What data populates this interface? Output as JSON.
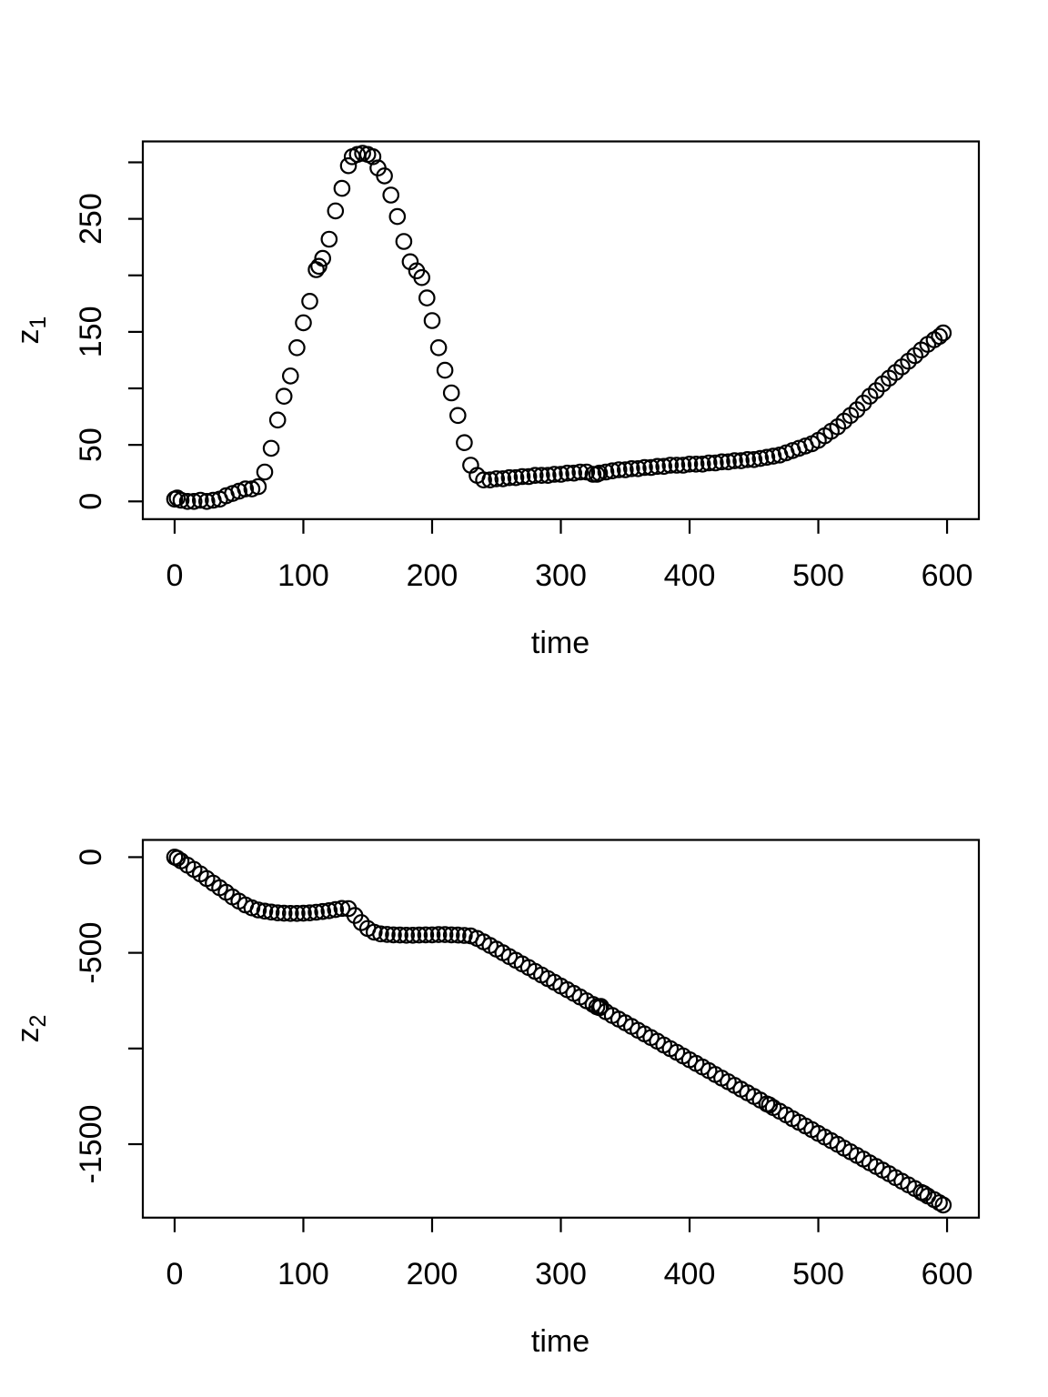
{
  "figure": {
    "background": "#ffffff",
    "foreground": "#000000",
    "marker": "open-circle",
    "panels": 2
  },
  "chart_data": [
    {
      "type": "scatter",
      "title": "",
      "xlabel": "time",
      "ylabel_base": "z",
      "ylabel_sub": "1",
      "xlim": [
        -24.7,
        624.7
      ],
      "ylim": [
        -15.7,
        318.5
      ],
      "x_ticks": [
        0,
        100,
        200,
        300,
        400,
        500,
        600
      ],
      "x_tick_labels": [
        "0",
        "100",
        "200",
        "300",
        "400",
        "500",
        "600"
      ],
      "y_ticks": [
        0,
        50,
        100,
        150,
        200,
        250,
        300
      ],
      "y_tick_labels": [
        "0",
        "50",
        "",
        "150",
        "",
        "250",
        ""
      ],
      "grid": false,
      "legend": null,
      "points": [
        [
          0,
          2
        ],
        [
          2,
          3
        ],
        [
          5,
          1
        ],
        [
          10,
          0
        ],
        [
          15,
          0
        ],
        [
          20,
          1
        ],
        [
          25,
          0
        ],
        [
          30,
          1
        ],
        [
          35,
          2
        ],
        [
          40,
          5
        ],
        [
          45,
          7
        ],
        [
          50,
          9
        ],
        [
          55,
          11
        ],
        [
          60,
          11
        ],
        [
          65,
          13
        ],
        [
          70,
          26
        ],
        [
          75,
          47
        ],
        [
          80,
          72
        ],
        [
          85,
          93
        ],
        [
          90,
          111
        ],
        [
          95,
          136
        ],
        [
          100,
          158
        ],
        [
          105,
          177
        ],
        [
          110,
          205
        ],
        [
          112,
          208
        ],
        [
          115,
          215
        ],
        [
          120,
          232
        ],
        [
          125,
          257
        ],
        [
          130,
          277
        ],
        [
          135,
          297
        ],
        [
          138,
          305
        ],
        [
          142,
          307
        ],
        [
          146,
          308
        ],
        [
          150,
          307
        ],
        [
          154,
          305
        ],
        [
          158,
          295
        ],
        [
          163,
          288
        ],
        [
          168,
          271
        ],
        [
          173,
          252
        ],
        [
          178,
          230
        ],
        [
          183,
          212
        ],
        [
          188,
          204
        ],
        [
          192,
          198
        ],
        [
          196,
          180
        ],
        [
          200,
          160
        ],
        [
          205,
          136
        ],
        [
          210,
          116
        ],
        [
          215,
          96
        ],
        [
          220,
          76
        ],
        [
          225,
          52
        ],
        [
          230,
          32
        ],
        [
          235,
          23
        ],
        [
          240,
          19
        ],
        [
          245,
          19
        ],
        [
          250,
          20
        ],
        [
          255,
          20
        ],
        [
          260,
          21
        ],
        [
          265,
          21
        ],
        [
          270,
          22
        ],
        [
          275,
          22
        ],
        [
          280,
          23
        ],
        [
          285,
          23
        ],
        [
          290,
          23
        ],
        [
          295,
          24
        ],
        [
          300,
          24
        ],
        [
          305,
          25
        ],
        [
          310,
          25
        ],
        [
          315,
          26
        ],
        [
          320,
          26
        ],
        [
          325,
          24
        ],
        [
          328,
          24
        ],
        [
          330,
          25
        ],
        [
          335,
          26
        ],
        [
          340,
          27
        ],
        [
          345,
          28
        ],
        [
          350,
          28
        ],
        [
          355,
          29
        ],
        [
          360,
          29
        ],
        [
          365,
          30
        ],
        [
          370,
          30
        ],
        [
          375,
          31
        ],
        [
          380,
          31
        ],
        [
          385,
          32
        ],
        [
          390,
          32
        ],
        [
          395,
          32
        ],
        [
          400,
          33
        ],
        [
          405,
          33
        ],
        [
          410,
          33
        ],
        [
          415,
          34
        ],
        [
          420,
          34
        ],
        [
          425,
          35
        ],
        [
          430,
          35
        ],
        [
          435,
          36
        ],
        [
          440,
          36
        ],
        [
          445,
          37
        ],
        [
          450,
          37
        ],
        [
          455,
          38
        ],
        [
          460,
          39
        ],
        [
          465,
          40
        ],
        [
          470,
          41
        ],
        [
          475,
          43
        ],
        [
          480,
          45
        ],
        [
          485,
          47
        ],
        [
          490,
          49
        ],
        [
          495,
          51
        ],
        [
          500,
          54
        ],
        [
          505,
          58
        ],
        [
          510,
          62
        ],
        [
          515,
          66
        ],
        [
          520,
          71
        ],
        [
          525,
          76
        ],
        [
          530,
          81
        ],
        [
          535,
          87
        ],
        [
          540,
          93
        ],
        [
          545,
          98
        ],
        [
          550,
          104
        ],
        [
          555,
          109
        ],
        [
          560,
          114
        ],
        [
          565,
          119
        ],
        [
          570,
          124
        ],
        [
          575,
          129
        ],
        [
          580,
          134
        ],
        [
          585,
          139
        ],
        [
          590,
          143
        ],
        [
          594,
          146
        ],
        [
          597,
          149
        ]
      ]
    },
    {
      "type": "scatter",
      "title": "",
      "xlabel": "time",
      "ylabel_base": "z",
      "ylabel_sub": "2",
      "xlim": [
        -24.7,
        624.7
      ],
      "ylim": [
        -1884,
        90
      ],
      "x_ticks": [
        0,
        100,
        200,
        300,
        400,
        500,
        600
      ],
      "x_tick_labels": [
        "0",
        "100",
        "200",
        "300",
        "400",
        "500",
        "600"
      ],
      "y_ticks": [
        0,
        -500,
        -1000,
        -1500
      ],
      "y_tick_labels": [
        "0",
        "-500",
        "",
        "-1500"
      ],
      "grid": false,
      "legend": null,
      "points": [
        [
          0,
          0
        ],
        [
          2,
          -6
        ],
        [
          5,
          -20
        ],
        [
          10,
          -42
        ],
        [
          15,
          -64
        ],
        [
          20,
          -88
        ],
        [
          25,
          -112
        ],
        [
          30,
          -136
        ],
        [
          35,
          -160
        ],
        [
          40,
          -184
        ],
        [
          45,
          -208
        ],
        [
          50,
          -230
        ],
        [
          55,
          -250
        ],
        [
          60,
          -265
        ],
        [
          65,
          -276
        ],
        [
          70,
          -282
        ],
        [
          75,
          -287
        ],
        [
          80,
          -291
        ],
        [
          85,
          -293
        ],
        [
          90,
          -294
        ],
        [
          95,
          -294
        ],
        [
          100,
          -293
        ],
        [
          105,
          -291
        ],
        [
          110,
          -288
        ],
        [
          115,
          -284
        ],
        [
          120,
          -280
        ],
        [
          125,
          -274
        ],
        [
          130,
          -268
        ],
        [
          135,
          -269
        ],
        [
          140,
          -305
        ],
        [
          145,
          -342
        ],
        [
          150,
          -373
        ],
        [
          155,
          -392
        ],
        [
          160,
          -401
        ],
        [
          165,
          -404
        ],
        [
          170,
          -406
        ],
        [
          175,
          -407
        ],
        [
          180,
          -408
        ],
        [
          185,
          -408
        ],
        [
          190,
          -407
        ],
        [
          195,
          -406
        ],
        [
          200,
          -406
        ],
        [
          205,
          -405
        ],
        [
          210,
          -405
        ],
        [
          215,
          -406
        ],
        [
          220,
          -407
        ],
        [
          225,
          -409
        ],
        [
          230,
          -412
        ],
        [
          235,
          -425
        ],
        [
          240,
          -443
        ],
        [
          245,
          -462
        ],
        [
          250,
          -481
        ],
        [
          255,
          -500
        ],
        [
          260,
          -520
        ],
        [
          265,
          -539
        ],
        [
          270,
          -558
        ],
        [
          275,
          -577
        ],
        [
          280,
          -597
        ],
        [
          285,
          -616
        ],
        [
          290,
          -635
        ],
        [
          295,
          -654
        ],
        [
          300,
          -674
        ],
        [
          305,
          -693
        ],
        [
          310,
          -712
        ],
        [
          315,
          -731
        ],
        [
          320,
          -751
        ],
        [
          325,
          -770
        ],
        [
          328,
          -782
        ],
        [
          330,
          -787
        ],
        [
          331,
          -780
        ],
        [
          335,
          -808
        ],
        [
          340,
          -828
        ],
        [
          345,
          -847
        ],
        [
          350,
          -866
        ],
        [
          355,
          -885
        ],
        [
          360,
          -905
        ],
        [
          365,
          -924
        ],
        [
          370,
          -943
        ],
        [
          375,
          -962
        ],
        [
          380,
          -982
        ],
        [
          385,
          -1001
        ],
        [
          390,
          -1020
        ],
        [
          395,
          -1039
        ],
        [
          400,
          -1059
        ],
        [
          405,
          -1078
        ],
        [
          410,
          -1097
        ],
        [
          415,
          -1116
        ],
        [
          420,
          -1136
        ],
        [
          425,
          -1155
        ],
        [
          430,
          -1174
        ],
        [
          435,
          -1193
        ],
        [
          440,
          -1213
        ],
        [
          445,
          -1232
        ],
        [
          450,
          -1251
        ],
        [
          455,
          -1270
        ],
        [
          460,
          -1290
        ],
        [
          462,
          -1295
        ],
        [
          465,
          -1309
        ],
        [
          470,
          -1328
        ],
        [
          475,
          -1347
        ],
        [
          480,
          -1367
        ],
        [
          485,
          -1386
        ],
        [
          490,
          -1405
        ],
        [
          495,
          -1424
        ],
        [
          500,
          -1444
        ],
        [
          505,
          -1463
        ],
        [
          510,
          -1482
        ],
        [
          515,
          -1501
        ],
        [
          520,
          -1521
        ],
        [
          525,
          -1540
        ],
        [
          530,
          -1559
        ],
        [
          535,
          -1578
        ],
        [
          540,
          -1598
        ],
        [
          545,
          -1617
        ],
        [
          550,
          -1636
        ],
        [
          555,
          -1655
        ],
        [
          560,
          -1675
        ],
        [
          565,
          -1694
        ],
        [
          570,
          -1713
        ],
        [
          575,
          -1732
        ],
        [
          580,
          -1752
        ],
        [
          582,
          -1758
        ],
        [
          585,
          -1771
        ],
        [
          590,
          -1790
        ],
        [
          594,
          -1806
        ],
        [
          597,
          -1818
        ]
      ]
    }
  ]
}
